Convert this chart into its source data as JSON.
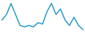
{
  "values": [
    4,
    6,
    10,
    6,
    2,
    1.5,
    2,
    1.5,
    3,
    2.5,
    7,
    10,
    6,
    8,
    4,
    2,
    5,
    2,
    0.5
  ],
  "line_color": "#2196c4",
  "background_color": "#ffffff",
  "linewidth": 1.1
}
